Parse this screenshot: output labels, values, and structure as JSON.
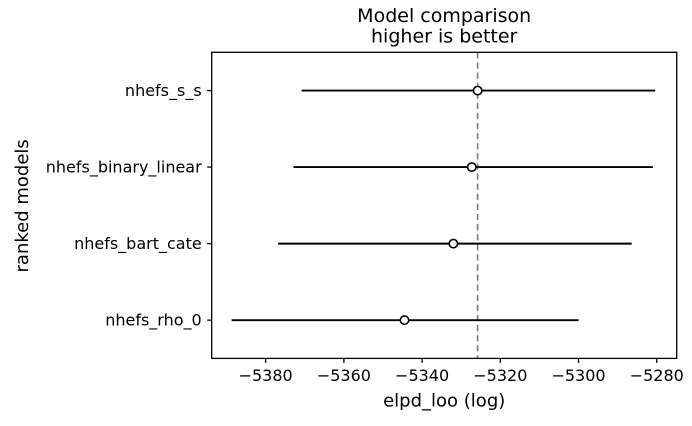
{
  "figure": {
    "background": "#ffffff"
  },
  "chart_data": {
    "type": "scatter",
    "subtype": "horizontal_errorbar_model_comparison",
    "title": "Model comparison\nhigher is better",
    "title_line1": "Model comparison",
    "title_line2": "higher is better",
    "xlabel": "elpd_loo (log)",
    "ylabel": "ranked models",
    "categories": [
      "nhefs_s_s",
      "nhefs_binary_linear",
      "nhefs_bart_cate",
      "nhefs_rho_0"
    ],
    "series": [
      {
        "name": "elpd_loo",
        "values": [
          -5325.8,
          -5327.3,
          -5332.0,
          -5344.5
        ]
      },
      {
        "name": "elpd_loo_lower",
        "values": [
          -5370.8,
          -5372.9,
          -5376.8,
          -5388.7
        ]
      },
      {
        "name": "elpd_loo_upper",
        "values": [
          -5280.4,
          -5281.0,
          -5286.4,
          -5300.0
        ]
      }
    ],
    "reference_line": {
      "x": -5325.8,
      "style": "dashed",
      "color": "#808080"
    },
    "x_ticks": [
      -5380,
      -5360,
      -5340,
      -5320,
      -5300,
      -5280
    ],
    "xlim": [
      -5393.8,
      -5274.9
    ],
    "grid": false,
    "legend": false,
    "marker": {
      "shape": "circle",
      "fill": "#ffffff",
      "stroke": "#000000"
    },
    "colors": {
      "errorbar": "#000000",
      "spine": "#000000",
      "text": "#000000",
      "background": "#ffffff"
    }
  }
}
